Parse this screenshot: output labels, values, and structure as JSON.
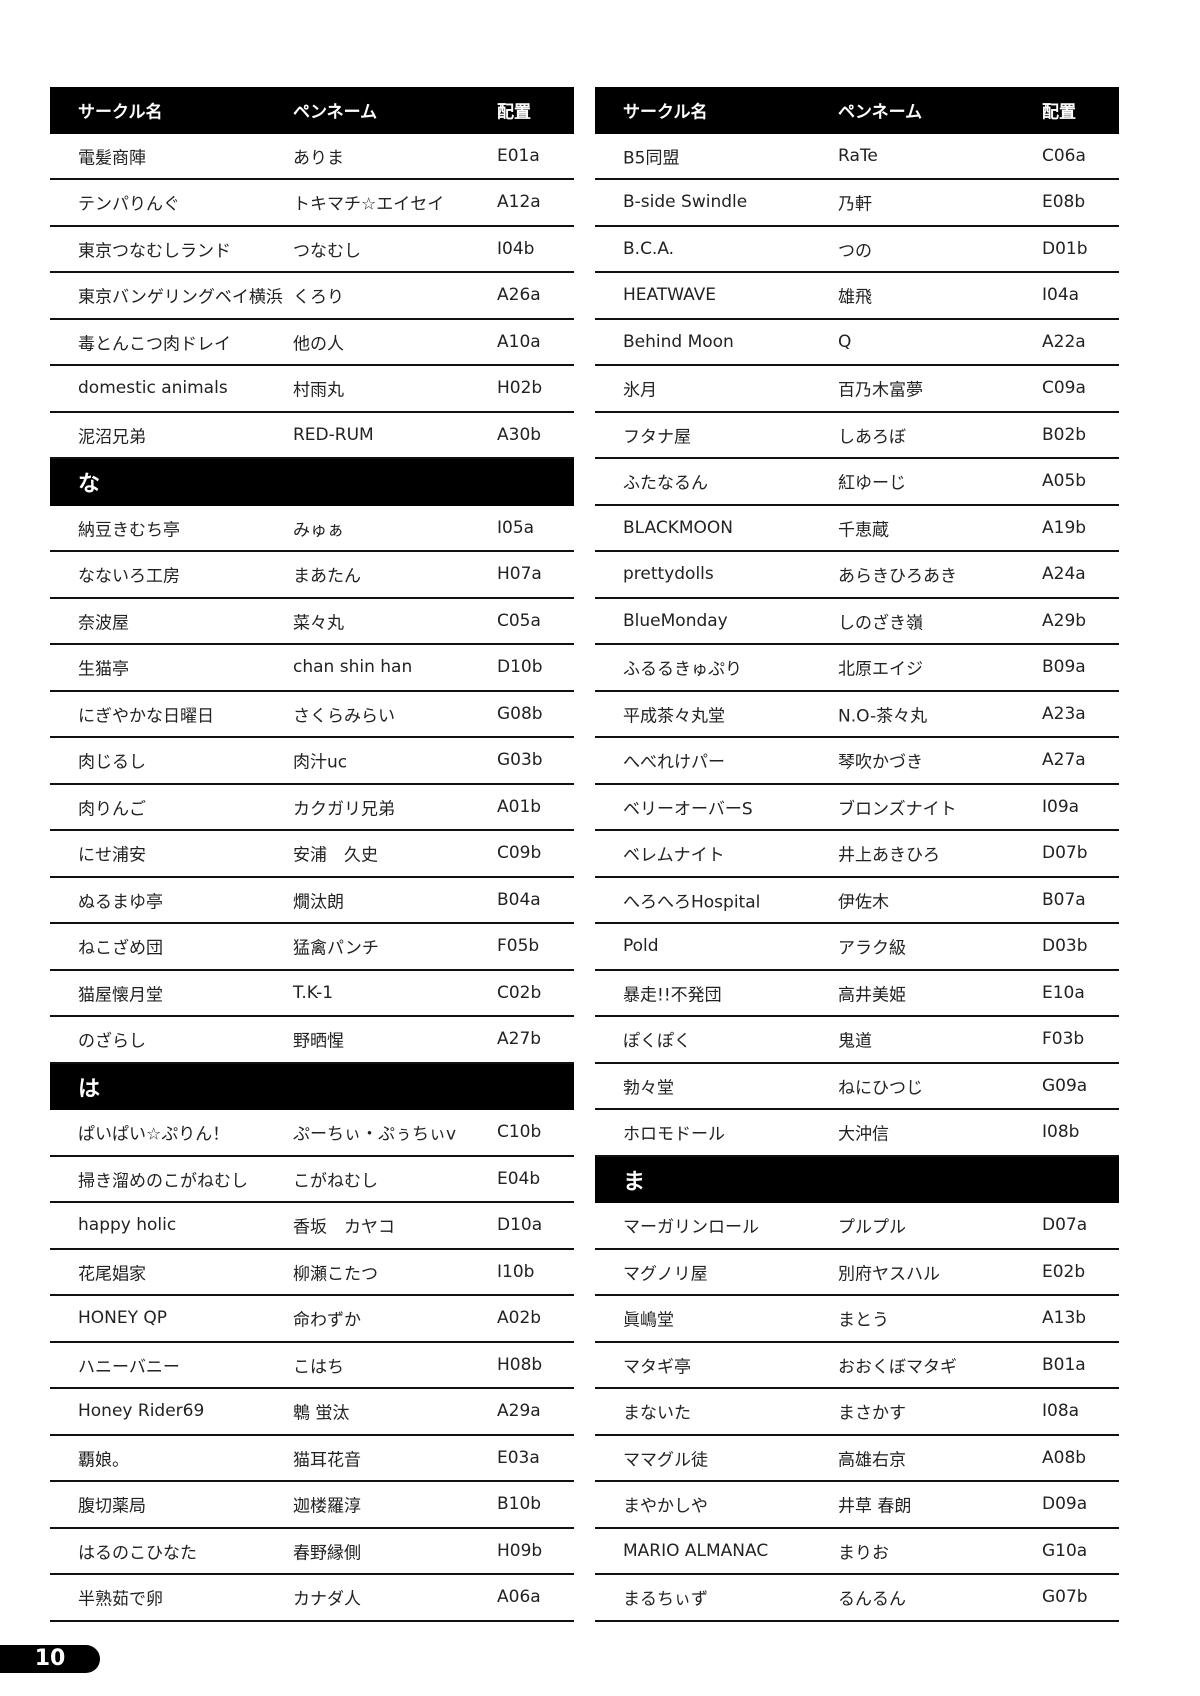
{
  "page_number": "10",
  "columns": [
    {
      "header": [
        "サークル名",
        "ペンネーム",
        "配置"
      ],
      "rows": [
        [
          "電髪商陣",
          "ありま",
          "E01a"
        ],
        [
          "テンパりんぐ",
          "トキマチ☆エイセイ",
          "A12a"
        ],
        [
          "東京つなむしランド",
          "つなむし",
          "I04b"
        ],
        [
          "東京バンゲリングベイ横浜",
          "くろり",
          "A26a"
        ],
        [
          "毒とんこつ肉ドレイ",
          "他の人",
          "A10a"
        ],
        [
          "domestic animals",
          "村雨丸",
          "H02b"
        ],
        [
          "泥沼兄弟",
          "RED-RUM",
          "A30b"
        ],
        [
          "な"
        ],
        [
          "納豆きむち亭",
          "みゅぁ",
          "I05a"
        ],
        [
          "なないろ工房",
          "まあたん",
          "H07a"
        ],
        [
          "奈波屋",
          "菜々丸",
          "C05a"
        ],
        [
          "生猫亭",
          "chan shin han",
          "D10b"
        ],
        [
          "にぎやかな日曜日",
          "さくらみらい",
          "G08b"
        ],
        [
          "肉じるし",
          "肉汁uc",
          "G03b"
        ],
        [
          "肉りんご",
          "カクガリ兄弟",
          "A01b"
        ],
        [
          "にせ浦安",
          "安浦　久史",
          "C09b"
        ],
        [
          "ぬるまゆ亭",
          "燗汰朗",
          "B04a"
        ],
        [
          "ねこざめ団",
          "猛禽パンチ",
          "F05b"
        ],
        [
          "猫屋懐月堂",
          "T.K-1",
          "C02b"
        ],
        [
          "のざらし",
          "野晒惺",
          "A27b"
        ],
        [
          "は"
        ],
        [
          "ぱいぱい☆ぷりん！",
          "ぷーちぃ・ぷぅちぃv",
          "C10b"
        ],
        [
          "掃き溜めのこがねむし",
          "こがねむし",
          "E04b"
        ],
        [
          "happy holic",
          "香坂　カヤコ",
          "D10a"
        ],
        [
          "花尾娼家",
          "柳瀬こたつ",
          "I10b"
        ],
        [
          "HONEY QP",
          "命わずか",
          "A02b"
        ],
        [
          "ハニーバニー",
          "こはち",
          "H08b"
        ],
        [
          "Honey Rider69",
          "鵯 蛍汰",
          "A29a"
        ],
        [
          "覇娘。",
          "猫耳花音",
          "E03a"
        ],
        [
          "腹切薬局",
          "迦楼羅淳",
          "B10b"
        ],
        [
          "はるのこひなた",
          "春野縁側",
          "H09b"
        ],
        [
          "半熟茹で卵",
          "カナダ人",
          "A06a"
        ]
      ]
    },
    {
      "header": [
        "サークル名",
        "ペンネーム",
        "配置"
      ],
      "rows": [
        [
          "B5同盟",
          "RaTe",
          "C06a"
        ],
        [
          "B-side Swindle",
          "乃軒",
          "E08b"
        ],
        [
          "B.C.A.",
          "つの",
          "D01b"
        ],
        [
          "HEATWAVE",
          "雄飛",
          "I04a"
        ],
        [
          "Behind Moon",
          "Q",
          "A22a"
        ],
        [
          "氷月",
          "百乃木富夢",
          "C09a"
        ],
        [
          "フタナ屋",
          "しあろぼ",
          "B02b"
        ],
        [
          "ふたなるん",
          "紅ゆーじ",
          "A05b"
        ],
        [
          "BLACKMOON",
          "千恵蔵",
          "A19b"
        ],
        [
          "prettydolls",
          "あらきひろあき",
          "A24a"
        ],
        [
          "BlueMonday",
          "しのざき嶺",
          "A29b"
        ],
        [
          "ふるるきゅぷり",
          "北原エイジ",
          "B09a"
        ],
        [
          "平成茶々丸堂",
          "N.O-茶々丸",
          "A23a"
        ],
        [
          "へべれけパー",
          "琴吹かづき",
          "A27a"
        ],
        [
          "ベリーオーバーS",
          "ブロンズナイト",
          "I09a"
        ],
        [
          "ベレムナイト",
          "井上あきひろ",
          "D07b"
        ],
        [
          "へろへろHospital",
          "伊佐木",
          "B07a"
        ],
        [
          "Pold",
          "アラク級",
          "D03b"
        ],
        [
          "暴走!!不発団",
          "高井美姫",
          "E10a"
        ],
        [
          "ぽくぽく",
          "鬼道",
          "F03b"
        ],
        [
          "勃々堂",
          "ねにひつじ",
          "G09a"
        ],
        [
          "ホロモドール",
          "大沖信",
          "I08b"
        ],
        [
          "ま"
        ],
        [
          "マーガリンロール",
          "プルプル",
          "D07a"
        ],
        [
          "マグノリ屋",
          "別府ヤスハル",
          "E02b"
        ],
        [
          "眞嶋堂",
          "まとう",
          "A13b"
        ],
        [
          "マタギ亭",
          "おおくぼマタギ",
          "B01a"
        ],
        [
          "まないた",
          "まさかす",
          "I08a"
        ],
        [
          "ママグル徒",
          "高雄右京",
          "A08b"
        ],
        [
          "まやかしや",
          "井草 春朗",
          "D09a"
        ],
        [
          "MARIO ALMANAC",
          "まりお",
          "G10a"
        ],
        [
          "まるちぃず",
          "るんるん",
          "G07b"
        ]
      ]
    }
  ]
}
